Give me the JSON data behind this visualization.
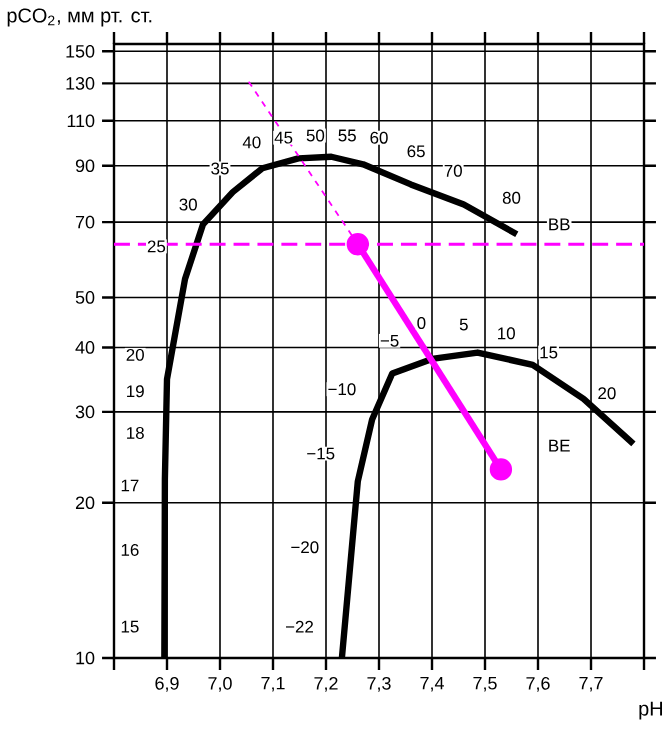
{
  "chart_data": {
    "type": "line",
    "xlabel": "pH",
    "ylabel": "pCO$_{2}$, мм рт. ст.",
    "log": "y",
    "grid": true,
    "xlim": [
      6.8,
      7.8
    ],
    "ylim": [
      10,
      155
    ],
    "xticks": [
      {
        "value": 6.8,
        "label": null
      },
      {
        "value": 6.9,
        "label": "6,9"
      },
      {
        "value": 7.0,
        "label": "7,0"
      },
      {
        "value": 7.1,
        "label": "7,1"
      },
      {
        "value": 7.2,
        "label": "7,2"
      },
      {
        "value": 7.3,
        "label": "7,3"
      },
      {
        "value": 7.4,
        "label": "7,4"
      },
      {
        "value": 7.5,
        "label": "7,5"
      },
      {
        "value": 7.6,
        "label": "7,6"
      },
      {
        "value": 7.7,
        "label": "7,7"
      },
      {
        "value": 7.8,
        "label": null
      }
    ],
    "yticks": [
      10,
      20,
      30,
      40,
      50,
      70,
      90,
      110,
      130,
      150
    ],
    "series": [
      {
        "color": "#000000",
        "x": [
          6.895,
          6.896,
          6.9,
          6.934,
          6.968,
          7.024,
          7.08,
          7.148,
          7.21,
          7.27,
          7.36,
          7.46,
          7.56
        ],
        "values": [
          10,
          22.2,
          34.7,
          54.3,
          69.3,
          80,
          89,
          93,
          93.7,
          90.6,
          82.8,
          75.7,
          66.3
        ],
        "marker": "none",
        "line_style": "solid"
      },
      {
        "color": "#000000",
        "x": [
          7.23,
          7.26,
          7.287,
          7.325,
          7.4,
          7.486,
          7.59,
          7.686,
          7.78
        ],
        "values": [
          10,
          22,
          29,
          35.6,
          38,
          39.1,
          37,
          31.8,
          26
        ],
        "marker": "none",
        "line_style": "solid"
      },
      {
        "color": "#ff00ff",
        "x": [
          7.26,
          7.53
        ],
        "values": [
          63.4,
          23.2
        ],
        "marker": "circle",
        "line_style": "solid"
      },
      {
        "color": "#ff00ff",
        "x": [
          7.054,
          7.26
        ],
        "values": [
          131,
          63.4
        ],
        "marker": "none",
        "line_style": "dashed"
      }
    ],
    "ref_lines": [
      {
        "axis": "y",
        "value": 63.4,
        "color": "#ff00ff",
        "line_style": "dashed"
      }
    ],
    "annotations": [
      {
        "text": "15",
        "x": 6.83,
        "y": 11.5
      },
      {
        "text": "16",
        "x": 6.83,
        "y": 16.2
      },
      {
        "text": "17",
        "x": 6.83,
        "y": 21.6
      },
      {
        "text": "18",
        "x": 6.84,
        "y": 27.3
      },
      {
        "text": "19",
        "x": 6.84,
        "y": 32.9
      },
      {
        "text": "20",
        "x": 6.84,
        "y": 38.7
      },
      {
        "text": "25",
        "x": 6.88,
        "y": 62.8
      },
      {
        "text": "30",
        "x": 6.94,
        "y": 75.7
      },
      {
        "text": "35",
        "x": 7.0,
        "y": 88.9
      },
      {
        "text": "40",
        "x": 7.06,
        "y": 99.9
      },
      {
        "text": "45",
        "x": 7.12,
        "y": 102
      },
      {
        "text": "50",
        "x": 7.18,
        "y": 103
      },
      {
        "text": "55",
        "x": 7.24,
        "y": 103
      },
      {
        "text": "60",
        "x": 7.3,
        "y": 102
      },
      {
        "text": "65",
        "x": 7.37,
        "y": 96
      },
      {
        "text": "70",
        "x": 7.44,
        "y": 88
      },
      {
        "text": "80",
        "x": 7.55,
        "y": 78
      },
      {
        "text": "BB",
        "x": 7.64,
        "y": 69.3
      },
      {
        "text": "−22",
        "x": 7.15,
        "y": 11.5
      },
      {
        "text": "−20",
        "x": 7.16,
        "y": 16.4
      },
      {
        "text": "−15",
        "x": 7.19,
        "y": 24.9
      },
      {
        "text": "−10",
        "x": 7.23,
        "y": 33.2
      },
      {
        "text": "−5",
        "x": 7.32,
        "y": 41.2
      },
      {
        "text": "0",
        "x": 7.38,
        "y": 44.6
      },
      {
        "text": "5",
        "x": 7.46,
        "y": 44.3
      },
      {
        "text": "10",
        "x": 7.54,
        "y": 42.6
      },
      {
        "text": "15",
        "x": 7.62,
        "y": 39.1
      },
      {
        "text": "20",
        "x": 7.73,
        "y": 32.6
      },
      {
        "text": "BE",
        "x": 7.64,
        "y": 25.8
      }
    ]
  }
}
